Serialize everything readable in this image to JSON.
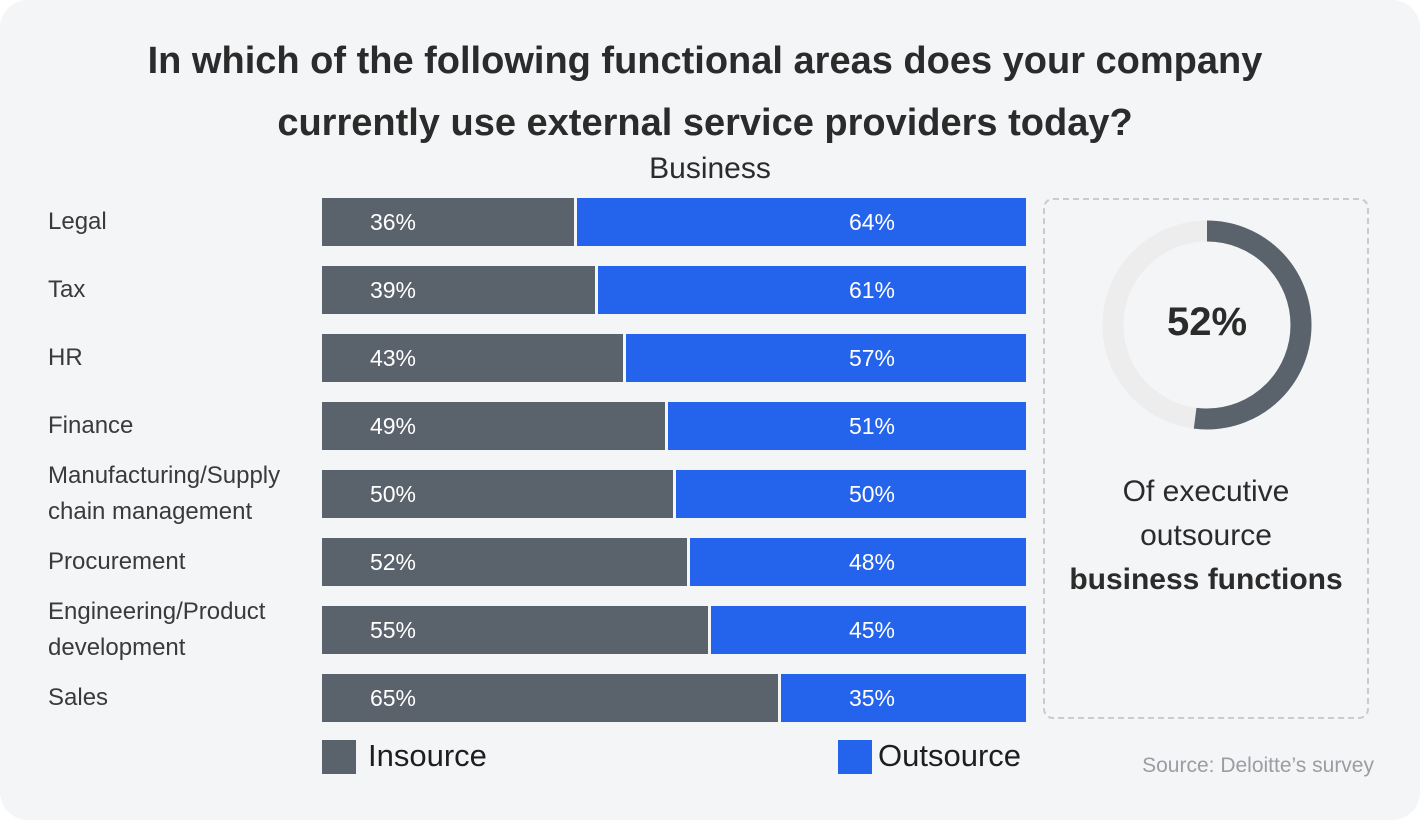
{
  "title_line1": "In which of the following functional areas does your company",
  "title_line2": "currently use external service providers today?",
  "chart_data": {
    "type": "bar",
    "orientation": "horizontal",
    "stacked": true,
    "title": "In which of the following functional areas does your company currently use external service providers today?",
    "subtitle": "Business",
    "categories": [
      "Legal",
      "Tax",
      "HR",
      "Finance",
      "Manufacturing/Supply chain management",
      "Procurement",
      "Engineering/Product development",
      "Sales"
    ],
    "category_lines": [
      [
        "Legal"
      ],
      [
        "Tax"
      ],
      [
        "HR"
      ],
      [
        "Finance"
      ],
      [
        "Manufacturing/Supply",
        "chain management"
      ],
      [
        "Procurement"
      ],
      [
        "Engineering/Product",
        "development"
      ],
      [
        "Sales"
      ]
    ],
    "series": [
      {
        "name": "Insource",
        "color": "#5a626b",
        "values": [
          36,
          39,
          43,
          49,
          50,
          52,
          55,
          65
        ]
      },
      {
        "name": "Outsource",
        "color": "#2463eb",
        "values": [
          64,
          61,
          57,
          51,
          50,
          48,
          45,
          35
        ]
      }
    ],
    "xlim": [
      0,
      100
    ],
    "grid": false,
    "legend": "bottom"
  },
  "callout": {
    "value": 52,
    "value_label": "52%",
    "ring_color": "#5a626b",
    "track_color": "#ededee",
    "text_line1": "Of executive",
    "text_line2": "outsource",
    "text_bold": "business functions"
  },
  "source": "Source: Deloitte’s survey"
}
